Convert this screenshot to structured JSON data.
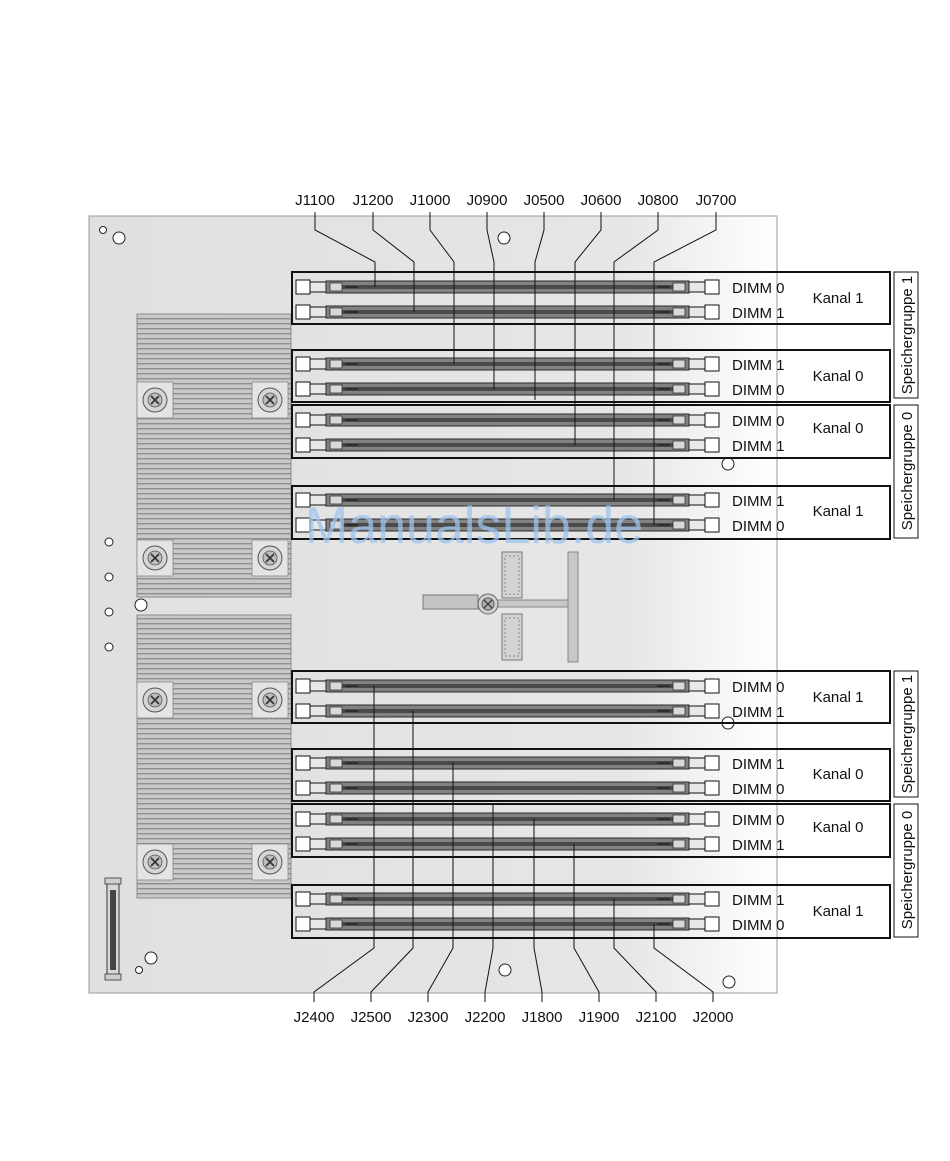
{
  "top_connectors": [
    "J1100",
    "J1200",
    "J1000",
    "J0900",
    "J0500",
    "J0600",
    "J0800",
    "J0700"
  ],
  "bottom_connectors": [
    "J2400",
    "J2500",
    "J2300",
    "J2200",
    "J1800",
    "J1900",
    "J2100",
    "J2000"
  ],
  "upper_slots": [
    {
      "dimm": "DIMM 0"
    },
    {
      "dimm": "DIMM 1"
    },
    {
      "dimm": "DIMM 1"
    },
    {
      "dimm": "DIMM 0"
    },
    {
      "dimm": "DIMM 0"
    },
    {
      "dimm": "DIMM 1"
    },
    {
      "dimm": "DIMM 1"
    },
    {
      "dimm": "DIMM 0"
    }
  ],
  "lower_slots": [
    {
      "dimm": "DIMM 0"
    },
    {
      "dimm": "DIMM 1"
    },
    {
      "dimm": "DIMM 1"
    },
    {
      "dimm": "DIMM 0"
    },
    {
      "dimm": "DIMM 0"
    },
    {
      "dimm": "DIMM 1"
    },
    {
      "dimm": "DIMM 1"
    },
    {
      "dimm": "DIMM 0"
    }
  ],
  "upper_channels": [
    "Kanal 1",
    "Kanal 0",
    "Kanal 0",
    "Kanal 1"
  ],
  "lower_channels": [
    "Kanal 1",
    "Kanal 0",
    "Kanal 0",
    "Kanal 1"
  ],
  "upper_groups": [
    "Speichergruppe 1",
    "Speichergruppe 0"
  ],
  "lower_groups": [
    "Speichergruppe 1",
    "Speichergruppe 0"
  ],
  "watermark": "ManualsLib.de",
  "colors": {
    "board": "#e2e2e2",
    "heatsink": "#bdbdbd",
    "dimm_slot": "#7a7a7a",
    "watermark": "#9fc4ee"
  }
}
